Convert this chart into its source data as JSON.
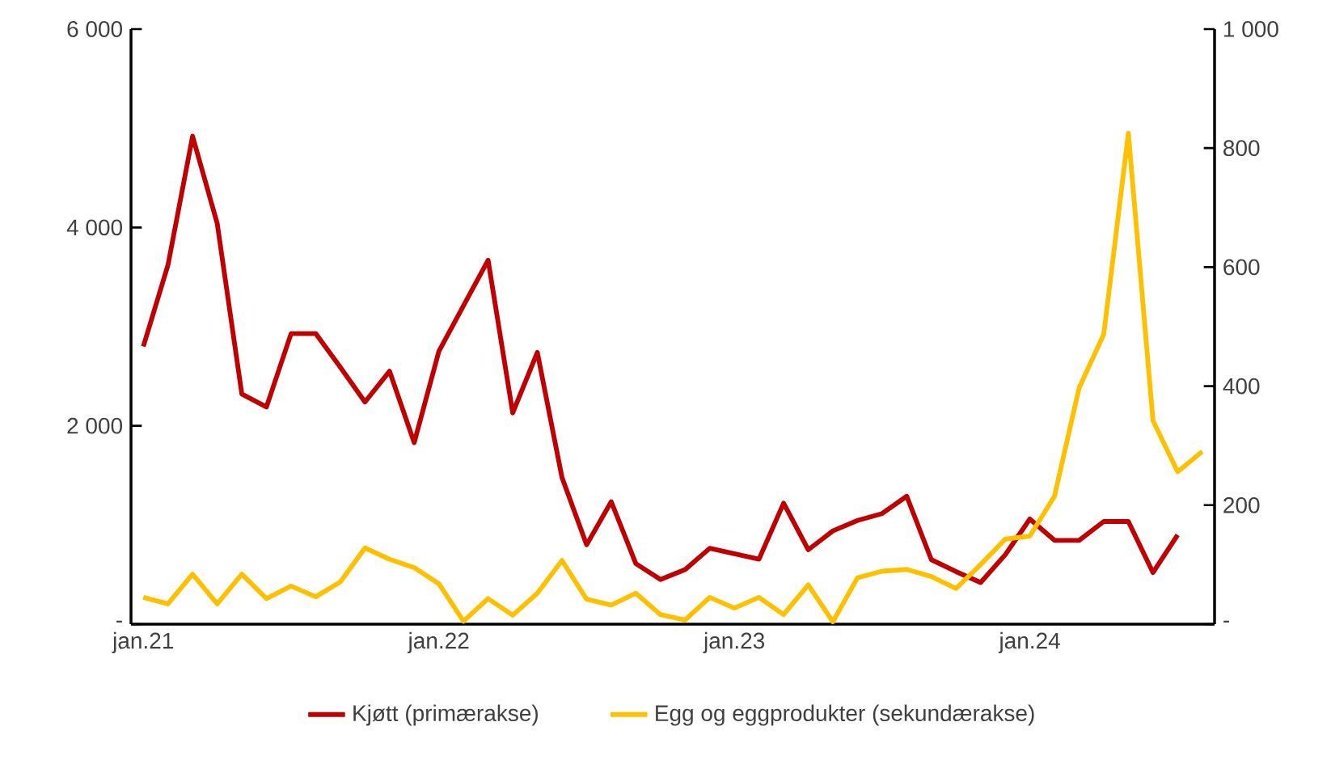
{
  "chart_data": {
    "type": "line",
    "categories": [
      "jan.21",
      null,
      null,
      null,
      null,
      null,
      null,
      null,
      null,
      null,
      null,
      null,
      "jan.22",
      null,
      null,
      null,
      null,
      null,
      null,
      null,
      null,
      null,
      null,
      null,
      "jan.23",
      null,
      null,
      null,
      null,
      null,
      null,
      null,
      null,
      null,
      null,
      null,
      "jan.24",
      null,
      null,
      null,
      null,
      null,
      null,
      null
    ],
    "series": [
      {
        "name": "Kjøtt (primærakse)",
        "color": "#c00000",
        "values": [
          2800,
          3620,
          4920,
          4040,
          2320,
          2190,
          2930,
          2930,
          2590,
          2240,
          2550,
          1830,
          2750,
          3210,
          3670,
          2130,
          2740,
          1480,
          800,
          1235,
          610,
          450,
          550,
          765,
          710,
          655,
          1220,
          750,
          940,
          1045,
          1115,
          1290,
          650,
          530,
          420,
          700,
          1060,
          845,
          845,
          1035,
          1035,
          520,
          900,
          null
        ]
      },
      {
        "name": "Egg og eggprodukter (sekundærakse)",
        "color": "#ffc000",
        "axis": "y2",
        "values": [
          45,
          34,
          84,
          34,
          84,
          43,
          64,
          46,
          71,
          128,
          109,
          95,
          68,
          5,
          43,
          15,
          52,
          107,
          42,
          32,
          52,
          16,
          7,
          45,
          27,
          45,
          16,
          66,
          4,
          78,
          89,
          92,
          80,
          60,
          100,
          143,
          148,
          215,
          397,
          487,
          825,
          342,
          256,
          290
        ]
      }
    ],
    "ylim": [
      0,
      6000
    ],
    "yticks": [
      {
        "value": 0,
        "label": "-"
      },
      {
        "value": 2000,
        "label": "2 000"
      },
      {
        "value": 4000,
        "label": "4 000"
      },
      {
        "value": 6000,
        "label": "6 000"
      }
    ],
    "y2lim": [
      0,
      1000
    ],
    "y2ticks": [
      {
        "value": 0,
        "label": "-"
      },
      200,
      400,
      600,
      800,
      {
        "value": 1000,
        "label": "1 000"
      }
    ],
    "grid": false,
    "legend": "bottom",
    "marker": "none",
    "line_style": "solid"
  }
}
